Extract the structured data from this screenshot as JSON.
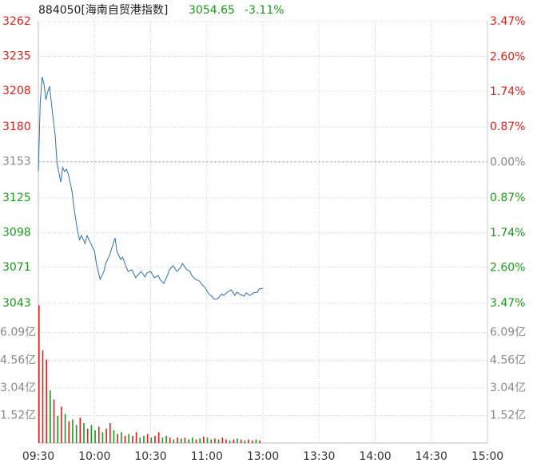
{
  "chart_data": [
    {
      "type": "line",
      "title": "884050[海南自贸港指数]",
      "last_price": "3054.65",
      "change": "-3.11%",
      "color": "#2f6fb0",
      "up_color": "#e0201a",
      "down_color": "#1a9a1a",
      "flat_color": "#888888",
      "xlim": [
        0,
        240
      ],
      "xticks": [
        {
          "value": 0,
          "label": "09:30"
        },
        {
          "value": 30,
          "label": "10:00"
        },
        {
          "value": 60,
          "label": "10:30"
        },
        {
          "value": 90,
          "label": "11:00"
        },
        {
          "value": 120,
          "label": "13:00"
        },
        {
          "value": 150,
          "label": "13:30"
        },
        {
          "value": 180,
          "label": "14:00"
        },
        {
          "value": 210,
          "label": "14:30"
        },
        {
          "value": 240,
          "label": "15:00"
        }
      ],
      "ylim": [
        3043,
        3262
      ],
      "yticks": [
        3262,
        3235,
        3208,
        3180,
        3153,
        3125,
        3098,
        3071,
        3043
      ],
      "y2lim": [
        -3.47,
        3.47
      ],
      "y2ticks": [
        {
          "value": 3.47,
          "label": "3.47%"
        },
        {
          "value": 2.6,
          "label": "2.60%"
        },
        {
          "value": 1.74,
          "label": "1.74%"
        },
        {
          "value": 0.87,
          "label": "0.87%"
        },
        {
          "value": 0,
          "label": "0.00%"
        },
        {
          "value": -0.87,
          "label": "0.87%"
        },
        {
          "value": -1.74,
          "label": "1.74%"
        },
        {
          "value": -2.6,
          "label": "2.60%"
        },
        {
          "value": -3.47,
          "label": "3.47%"
        }
      ],
      "grid": true,
      "x": [
        0,
        1,
        2,
        3,
        4,
        5,
        6,
        7,
        9,
        10,
        12,
        13,
        14,
        15,
        16,
        18,
        19,
        21,
        22,
        23,
        25,
        26,
        28,
        30,
        31,
        33,
        35,
        36,
        38,
        40,
        41,
        42,
        44,
        45,
        47,
        48,
        50,
        52,
        53,
        55,
        57,
        58,
        60,
        62,
        64,
        65,
        67,
        69,
        70,
        72,
        74,
        76,
        77,
        79,
        81,
        82,
        84,
        86,
        88,
        89,
        91,
        93,
        94,
        96,
        98,
        99,
        101,
        103,
        105,
        106,
        108,
        110,
        111,
        113,
        115,
        117,
        118,
        120
      ],
      "values": [
        3145.4,
        3198.4,
        3218.9,
        3213.6,
        3201.2,
        3207.4,
        3211.7,
        3198.1,
        3173.3,
        3151.6,
        3137.3,
        3148.5,
        3145.4,
        3147.2,
        3143.5,
        3129.9,
        3117.4,
        3098.8,
        3092.6,
        3095.7,
        3089.5,
        3095.7,
        3089.5,
        3083.3,
        3074.0,
        3061.6,
        3067.8,
        3074.0,
        3080.2,
        3089.5,
        3093.8,
        3083.3,
        3077.1,
        3079.0,
        3070.9,
        3067.8,
        3069.1,
        3062.9,
        3064.7,
        3067.8,
        3063.5,
        3066.6,
        3067.8,
        3062.9,
        3064.7,
        3061.6,
        3058.5,
        3064.7,
        3069.1,
        3072.2,
        3067.8,
        3070.9,
        3074.0,
        3069.7,
        3067.8,
        3064.7,
        3061.6,
        3060.4,
        3056.6,
        3055.4,
        3050.4,
        3048.0,
        3046.1,
        3046.7,
        3050.4,
        3049.2,
        3051.7,
        3053.5,
        3049.2,
        3051.7,
        3049.8,
        3048.6,
        3051.1,
        3049.2,
        3051.1,
        3051.7,
        3054.2,
        3054.65
      ]
    },
    {
      "type": "bar",
      "ylim": [
        0,
        7.7
      ],
      "yticks": [
        {
          "value": 1.52,
          "label": "1.52亿"
        },
        {
          "value": 3.04,
          "label": "3.04亿"
        },
        {
          "value": 4.56,
          "label": "4.56亿"
        },
        {
          "value": 6.09,
          "label": "6.09亿"
        }
      ],
      "x": [
        0,
        2,
        4,
        6,
        8,
        10,
        12,
        14,
        16,
        18,
        20,
        22,
        24,
        26,
        28,
        30,
        32,
        34,
        36,
        38,
        40,
        42,
        44,
        46,
        48,
        50,
        52,
        54,
        56,
        58,
        60,
        62,
        64,
        66,
        68,
        70,
        72,
        74,
        76,
        78,
        80,
        82,
        84,
        86,
        88,
        90,
        92,
        94,
        96,
        98,
        100,
        102,
        104,
        106,
        108,
        110,
        112,
        114,
        116,
        118
      ],
      "values": [
        7.6,
        5.1,
        4.6,
        2.9,
        2.4,
        1.5,
        2.0,
        1.6,
        1.2,
        1.3,
        1.0,
        1.4,
        1.1,
        0.8,
        1.0,
        0.7,
        0.9,
        0.6,
        0.8,
        1.1,
        0.7,
        0.5,
        0.6,
        0.4,
        0.5,
        0.4,
        0.6,
        0.3,
        0.4,
        0.5,
        0.3,
        0.4,
        0.6,
        0.3,
        0.4,
        0.3,
        0.2,
        0.3,
        0.25,
        0.3,
        0.2,
        0.3,
        0.2,
        0.25,
        0.35,
        0.3,
        0.2,
        0.25,
        0.2,
        0.3,
        0.2,
        0.15,
        0.2,
        0.25,
        0.2,
        0.15,
        0.2,
        0.15,
        0.2,
        0.15
      ],
      "colors": [
        "#e0201a",
        "#e0201a",
        "#e0201a",
        "#1a9a1a",
        "#e0201a",
        "#1a9a1a",
        "#e0201a",
        "#1a9a1a",
        "#e0201a",
        "#1a9a1a",
        "#1a9a1a",
        "#e0201a",
        "#1a9a1a",
        "#e0201a",
        "#1a9a1a",
        "#1a9a1a",
        "#e0201a",
        "#1a9a1a",
        "#e0201a",
        "#e0201a",
        "#1a9a1a",
        "#e0201a",
        "#1a9a1a",
        "#e0201a",
        "#1a9a1a",
        "#e0201a",
        "#e0201a",
        "#1a9a1a",
        "#1a9a1a",
        "#e0201a",
        "#1a9a1a",
        "#e0201a",
        "#e0201a",
        "#1a9a1a",
        "#1a9a1a",
        "#e0201a",
        "#1a9a1a",
        "#e0201a",
        "#1a9a1a",
        "#e0201a",
        "#1a9a1a",
        "#1a9a1a",
        "#e0201a",
        "#1a9a1a",
        "#e0201a",
        "#1a9a1a",
        "#1a9a1a",
        "#e0201a",
        "#1a9a1a",
        "#e0201a",
        "#e0201a",
        "#1a9a1a",
        "#e0201a",
        "#1a9a1a",
        "#e0201a",
        "#1a9a1a",
        "#e0201a",
        "#e0201a",
        "#1a9a1a",
        "#e0201a"
      ]
    }
  ]
}
